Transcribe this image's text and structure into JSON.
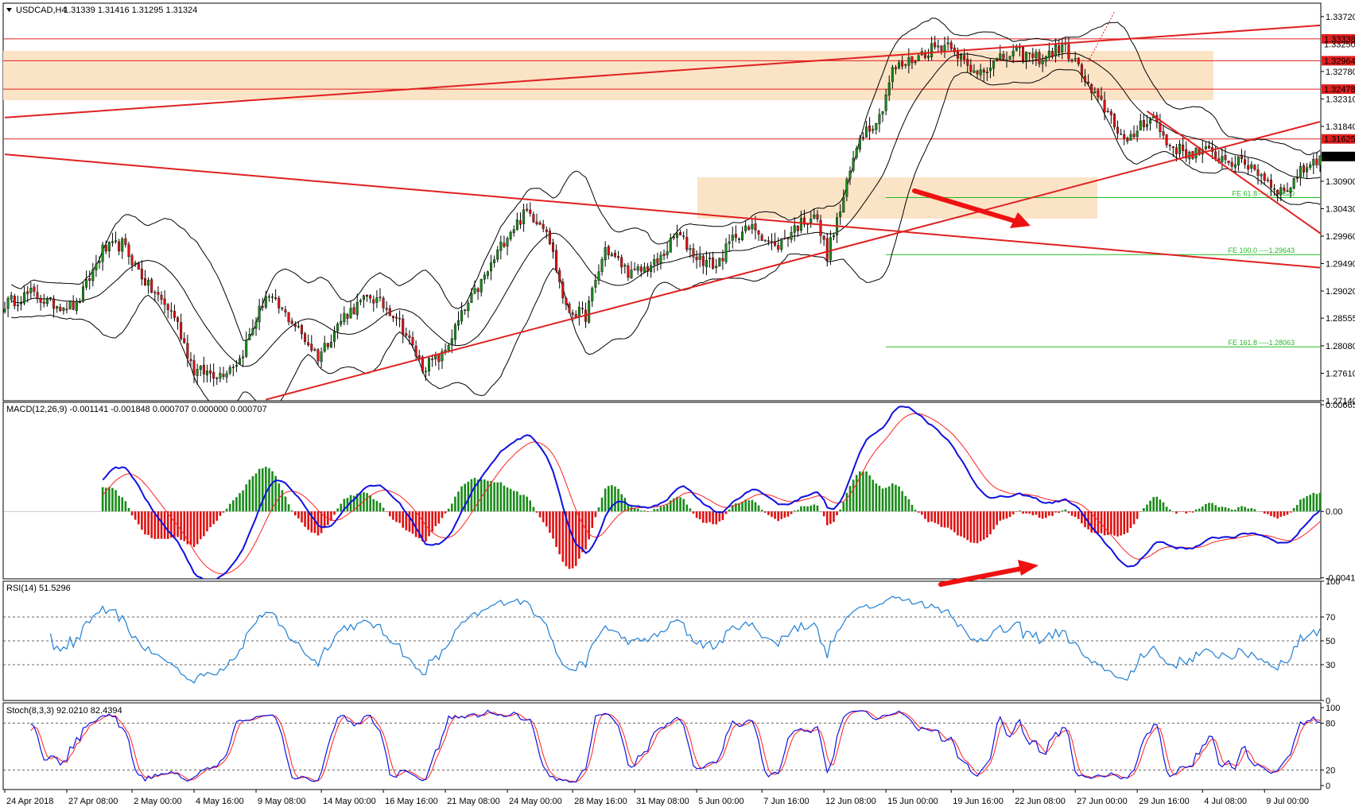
{
  "header": {
    "symbol": "USDCAD,H4",
    "ohlc": "1.31339 1.31416 1.31295 1.31324"
  },
  "colors": {
    "bull": "#1a8a1a",
    "bear": "#e01010",
    "trend": "#e02020",
    "zone": "#fbe3c6",
    "fib": "#22bb22",
    "bands": "#000000",
    "macd_line": "#1010e0",
    "signal_line": "#ff2020",
    "rsi_line": "#1e7fd6",
    "stoch_main": "#1010e0",
    "stoch_signal": "#ff2020"
  },
  "chart_data": [
    {
      "type": "candlestick",
      "panel": "price",
      "symbol": "USDCAD",
      "timeframe": "H4",
      "ylim": [
        1.2714,
        1.3395
      ],
      "y_ticks": [
        "1.33720",
        "1.32780",
        "1.32310",
        "1.31840",
        "1.30900",
        "1.30430",
        "1.29960",
        "1.29490",
        "1.29020",
        "1.28555",
        "1.28080",
        "1.27610",
        "1.27140"
      ],
      "price_tags": [
        {
          "label": "1.33338",
          "value": 1.33338,
          "bg": "#e02020"
        },
        {
          "label": "1.33250",
          "value": 1.3325,
          "bg": "none"
        },
        {
          "label": "1.32964",
          "value": 1.32964,
          "bg": "#e02020"
        },
        {
          "label": "1.32478",
          "value": 1.32478,
          "bg": "#e02020"
        },
        {
          "label": "1.31625",
          "value": 1.31625,
          "bg": "#e02020"
        },
        {
          "label": "1.31324",
          "value": 1.31324,
          "bg": "#000000"
        }
      ],
      "fib_levels": [
        {
          "label": "FE 61.8 ----1.30620",
          "value": 1.3062
        },
        {
          "label": "FE 100.0 ----1.29643",
          "value": 1.29643
        },
        {
          "label": "FE 161.8 ----1.28063",
          "value": 1.28063
        }
      ],
      "x_labels": [
        "24 Apr 2018",
        "27 Apr 08:00",
        "2 May 00:00",
        "4 May 16:00",
        "9 May 08:00",
        "14 May 00:00",
        "16 May 16:00",
        "21 May 08:00",
        "24 May 00:00",
        "28 May 16:00",
        "31 May 08:00",
        "5 Jun 00:00",
        "7 Jun 16:00",
        "12 Jun 08:00",
        "15 Jun 00:00",
        "19 Jun 16:00",
        "22 Jun 08:00",
        "27 Jun 00:00",
        "29 Jun 16:00",
        "4 Jul 08:00",
        "9 Jul 00:00"
      ],
      "trend_path": [
        [
          0,
          1.288
        ],
        [
          8,
          1.2898
        ],
        [
          14,
          1.288
        ],
        [
          22,
          1.2876
        ],
        [
          30,
          1.2972
        ],
        [
          36,
          1.2982
        ],
        [
          44,
          1.291
        ],
        [
          52,
          1.286
        ],
        [
          58,
          1.2765
        ],
        [
          66,
          1.276
        ],
        [
          72,
          1.2785
        ],
        [
          80,
          1.2895
        ],
        [
          88,
          1.285
        ],
        [
          96,
          1.279
        ],
        [
          104,
          1.286
        ],
        [
          112,
          1.2893
        ],
        [
          120,
          1.286
        ],
        [
          128,
          1.2772
        ],
        [
          134,
          1.279
        ],
        [
          140,
          1.286
        ],
        [
          148,
          1.2935
        ],
        [
          154,
          1.3
        ],
        [
          160,
          1.3038
        ],
        [
          166,
          1.3012
        ],
        [
          172,
          1.287
        ],
        [
          178,
          1.286
        ],
        [
          184,
          1.2975
        ],
        [
          192,
          1.293
        ],
        [
          200,
          1.295
        ],
        [
          206,
          1.3
        ],
        [
          212,
          1.296
        ],
        [
          218,
          1.2945
        ],
        [
          224,
          1.3
        ],
        [
          230,
          1.301
        ],
        [
          236,
          1.2975
        ],
        [
          242,
          1.301
        ],
        [
          248,
          1.3035
        ],
        [
          252,
          1.2965
        ],
        [
          256,
          1.304
        ],
        [
          262,
          1.317
        ],
        [
          268,
          1.32
        ],
        [
          272,
          1.328
        ],
        [
          278,
          1.3298
        ],
        [
          284,
          1.3318
        ],
        [
          290,
          1.3327
        ],
        [
          296,
          1.3275
        ],
        [
          302,
          1.329
        ],
        [
          310,
          1.331
        ],
        [
          318,
          1.33
        ],
        [
          324,
          1.3322
        ],
        [
          328,
          1.3295
        ],
        [
          333,
          1.324
        ],
        [
          338,
          1.321
        ],
        [
          344,
          1.315
        ],
        [
          348,
          1.319
        ],
        [
          352,
          1.32
        ],
        [
          356,
          1.3155
        ],
        [
          362,
          1.3138
        ],
        [
          368,
          1.314
        ],
        [
          376,
          1.3124
        ],
        [
          382,
          1.3117
        ],
        [
          388,
          1.3085
        ],
        [
          392,
          1.307
        ],
        [
          396,
          1.31
        ],
        [
          400,
          1.3122
        ],
        [
          403,
          1.31324
        ]
      ],
      "indicators": [
        "Bollinger Bands"
      ]
    },
    {
      "type": "line",
      "panel": "macd",
      "title": "MACD(12,26,9) -0.001141 -0.001848 0.000707 0.000000 0.000707",
      "ylim": [
        -0.0042,
        0.0068
      ],
      "y_ticks": [
        "0.006651",
        "0.00",
        "-0.004135"
      ],
      "series": [
        {
          "name": "MACD",
          "role": "main"
        },
        {
          "name": "Signal",
          "role": "signal"
        }
      ],
      "histogram": true
    },
    {
      "type": "line",
      "panel": "rsi",
      "title": "RSI(14) 51.5296",
      "ylim": [
        0,
        100
      ],
      "y_ticks": [
        "100",
        "70",
        "50",
        "30",
        "0"
      ],
      "levels": [
        70,
        50,
        30
      ]
    },
    {
      "type": "line",
      "panel": "stoch",
      "title": "Stoch(8,3,3) 92.0210 82.4394",
      "ylim": [
        0,
        100
      ],
      "y_ticks": [
        "100",
        "80",
        "20",
        "0"
      ],
      "levels": [
        80,
        20
      ]
    }
  ]
}
